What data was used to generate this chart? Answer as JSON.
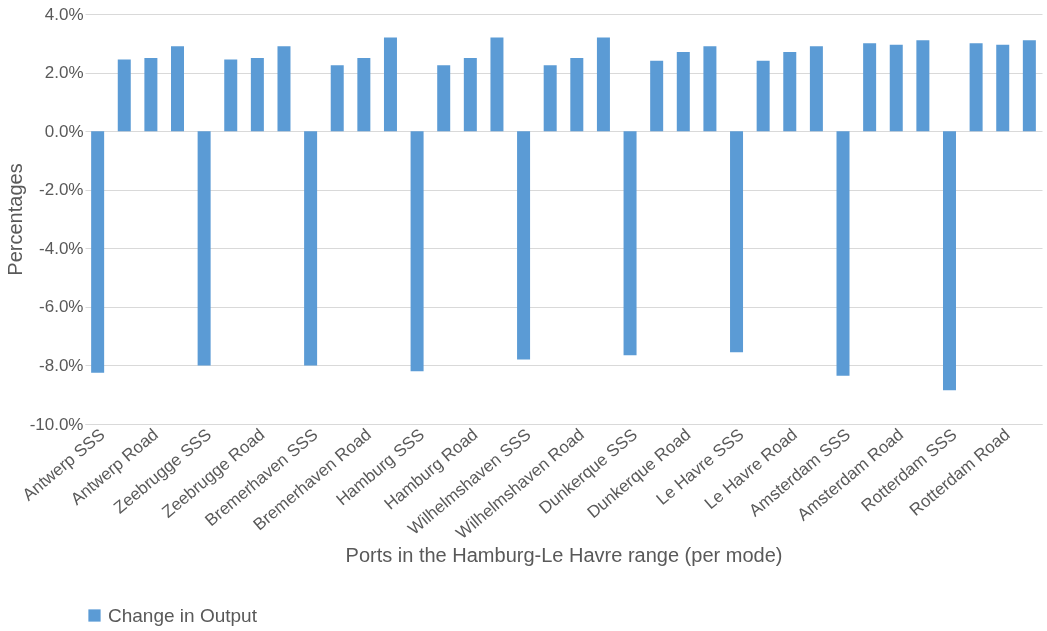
{
  "chart_data": {
    "type": "bar",
    "xlabel": "Ports in the Hamburg-Le Havre range (per mode)",
    "ylabel": "Percentages",
    "categories": [
      "Antwerp SSS",
      null,
      "Antwerp Road",
      null,
      "Zeebrugge SSS",
      null,
      "Zeebrugge Road",
      null,
      "Bremerhaven SSS",
      null,
      "Bremerhaven Road",
      null,
      "Hamburg SSS",
      null,
      "Hamburg Road",
      null,
      "Wilhelmshaven SSS",
      null,
      "Wilhelmshaven Road",
      null,
      "Dunkerque SSS",
      null,
      "Dunkerque Road",
      null,
      "Le Havre SSS",
      null,
      "Le Havre Road",
      null,
      "Amsterdam SSS",
      null,
      "Amsterdam Road",
      null,
      "Rotterdam SSS",
      null,
      "Rotterdam Road",
      null
    ],
    "series": [
      {
        "name": "Change in Output",
        "color": "#5b9bd5",
        "values": [
          -8.25,
          2.45,
          2.5,
          2.9,
          -8.0,
          2.45,
          2.5,
          2.9,
          -8.0,
          2.25,
          2.5,
          3.2,
          -8.2,
          2.25,
          2.5,
          3.2,
          -7.8,
          2.25,
          2.5,
          3.2,
          -7.65,
          2.4,
          2.7,
          2.9,
          -7.55,
          2.4,
          2.7,
          2.9,
          -8.35,
          3.0,
          2.95,
          3.1,
          -8.85,
          3.0,
          2.95,
          3.1
        ]
      }
    ],
    "ylim": [
      -10,
      4
    ],
    "yticks": [
      {
        "value": -10,
        "label": "-10.0%"
      },
      {
        "value": -8,
        "label": "-8.0%"
      },
      {
        "value": -6,
        "label": "-6.0%"
      },
      {
        "value": -4,
        "label": "-4.0%"
      },
      {
        "value": -2,
        "label": "-2.0%"
      },
      {
        "value": 0,
        "label": "0.0%"
      },
      {
        "value": 2,
        "label": "2.0%"
      },
      {
        "value": 4,
        "label": "4.0%"
      }
    ],
    "grid": "y",
    "legend": "bottom"
  }
}
